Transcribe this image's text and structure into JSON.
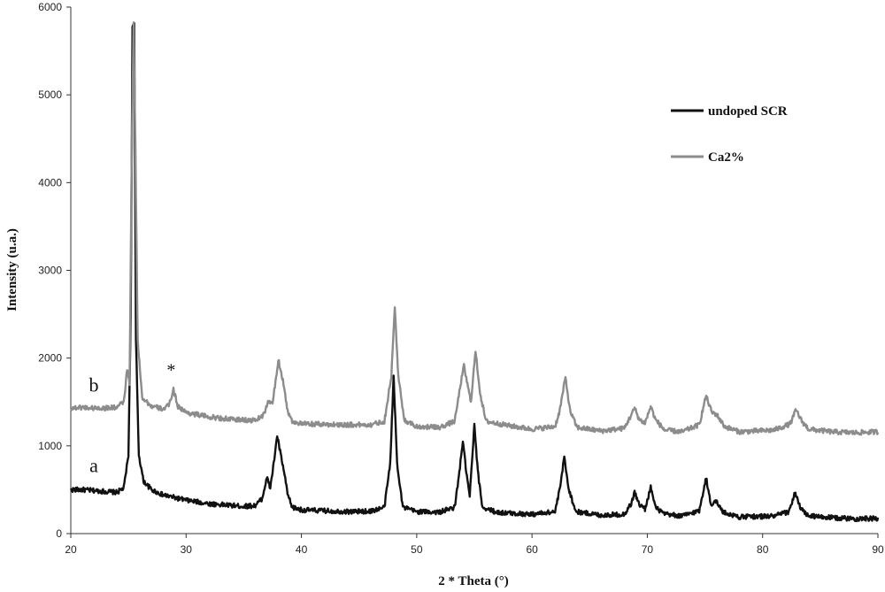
{
  "chart_data": {
    "type": "line",
    "xlabel": "2 * Theta (°)",
    "ylabel": "Intensity (u.a.)",
    "xlim": [
      20,
      90
    ],
    "ylim": [
      0,
      6000
    ],
    "x_ticks": [
      "20",
      "30",
      "40",
      "50",
      "60",
      "70",
      "80",
      "90"
    ],
    "y_ticks": [
      "0",
      "1000",
      "2000",
      "3000",
      "4000",
      "5000",
      "6000"
    ],
    "grid": false,
    "legend_position": "top-right",
    "series": [
      {
        "name": "undoped SCR",
        "color": "#111111",
        "points": [
          [
            20,
            500
          ],
          [
            21,
            500
          ],
          [
            22,
            490
          ],
          [
            23,
            480
          ],
          [
            24,
            470
          ],
          [
            24.6,
            520
          ],
          [
            25.0,
            900
          ],
          [
            25.2,
            2500
          ],
          [
            25.35,
            5800
          ],
          [
            25.5,
            5800
          ],
          [
            25.65,
            2200
          ],
          [
            25.9,
            900
          ],
          [
            26.3,
            600
          ],
          [
            27,
            500
          ],
          [
            28,
            440
          ],
          [
            29,
            410
          ],
          [
            30,
            380
          ],
          [
            31,
            360
          ],
          [
            32,
            340
          ],
          [
            33,
            330
          ],
          [
            34,
            320
          ],
          [
            35,
            310
          ],
          [
            36,
            320
          ],
          [
            36.6,
            400
          ],
          [
            37.0,
            640
          ],
          [
            37.3,
            520
          ],
          [
            37.6,
            800
          ],
          [
            37.9,
            1120
          ],
          [
            38.2,
            900
          ],
          [
            38.5,
            700
          ],
          [
            38.8,
            450
          ],
          [
            39.2,
            300
          ],
          [
            40,
            270
          ],
          [
            42,
            260
          ],
          [
            44,
            250
          ],
          [
            46,
            255
          ],
          [
            47.2,
            300
          ],
          [
            47.7,
            800
          ],
          [
            48.0,
            1780
          ],
          [
            48.3,
            800
          ],
          [
            48.8,
            300
          ],
          [
            50,
            250
          ],
          [
            52,
            245
          ],
          [
            53.3,
            300
          ],
          [
            53.7,
            700
          ],
          [
            54.0,
            1060
          ],
          [
            54.3,
            700
          ],
          [
            54.6,
            420
          ],
          [
            55.0,
            1230
          ],
          [
            55.3,
            700
          ],
          [
            55.7,
            300
          ],
          [
            57,
            240
          ],
          [
            60,
            220
          ],
          [
            62,
            250
          ],
          [
            62.4,
            500
          ],
          [
            62.8,
            870
          ],
          [
            63.2,
            500
          ],
          [
            63.8,
            250
          ],
          [
            66,
            210
          ],
          [
            68,
            220
          ],
          [
            68.6,
            340
          ],
          [
            68.9,
            470
          ],
          [
            69.3,
            330
          ],
          [
            69.8,
            280
          ],
          [
            70.3,
            530
          ],
          [
            70.7,
            300
          ],
          [
            71.5,
            220
          ],
          [
            73,
            200
          ],
          [
            74.5,
            260
          ],
          [
            75.1,
            640
          ],
          [
            75.5,
            330
          ],
          [
            75.9,
            380
          ],
          [
            76.6,
            240
          ],
          [
            78,
            190
          ],
          [
            81,
            200
          ],
          [
            82.3,
            250
          ],
          [
            82.8,
            470
          ],
          [
            83.3,
            280
          ],
          [
            84,
            200
          ],
          [
            86,
            180
          ],
          [
            88,
            170
          ],
          [
            90,
            170
          ]
        ]
      },
      {
        "name": "Ca2%",
        "color": "#8c8c8c",
        "points": [
          [
            20,
            1430
          ],
          [
            21,
            1440
          ],
          [
            22,
            1430
          ],
          [
            23,
            1430
          ],
          [
            24,
            1440
          ],
          [
            24.6,
            1500
          ],
          [
            24.9,
            1880
          ],
          [
            25.1,
            1700
          ],
          [
            25.3,
            4500
          ],
          [
            25.45,
            5800
          ],
          [
            25.6,
            4400
          ],
          [
            25.8,
            2200
          ],
          [
            26.2,
            1550
          ],
          [
            27,
            1450
          ],
          [
            28,
            1420
          ],
          [
            28.5,
            1460
          ],
          [
            28.9,
            1640
          ],
          [
            29.3,
            1450
          ],
          [
            30,
            1380
          ],
          [
            32,
            1330
          ],
          [
            34,
            1300
          ],
          [
            36,
            1290
          ],
          [
            36.8,
            1360
          ],
          [
            37.1,
            1510
          ],
          [
            37.5,
            1480
          ],
          [
            38.0,
            1980
          ],
          [
            38.4,
            1750
          ],
          [
            38.8,
            1400
          ],
          [
            39.2,
            1280
          ],
          [
            40,
            1250
          ],
          [
            44,
            1240
          ],
          [
            46,
            1240
          ],
          [
            47.2,
            1280
          ],
          [
            47.8,
            1800
          ],
          [
            48.1,
            2570
          ],
          [
            48.4,
            1800
          ],
          [
            48.9,
            1300
          ],
          [
            50,
            1220
          ],
          [
            52,
            1210
          ],
          [
            53.3,
            1280
          ],
          [
            53.8,
            1700
          ],
          [
            54.1,
            1910
          ],
          [
            54.4,
            1700
          ],
          [
            54.7,
            1500
          ],
          [
            55.1,
            2080
          ],
          [
            55.5,
            1600
          ],
          [
            56,
            1280
          ],
          [
            58,
            1230
          ],
          [
            60,
            1190
          ],
          [
            62,
            1220
          ],
          [
            62.4,
            1400
          ],
          [
            62.9,
            1780
          ],
          [
            63.3,
            1400
          ],
          [
            63.9,
            1210
          ],
          [
            66,
            1170
          ],
          [
            68,
            1200
          ],
          [
            68.6,
            1350
          ],
          [
            68.9,
            1430
          ],
          [
            69.3,
            1300
          ],
          [
            69.8,
            1260
          ],
          [
            70.3,
            1450
          ],
          [
            70.7,
            1300
          ],
          [
            71.5,
            1180
          ],
          [
            73,
            1160
          ],
          [
            74.5,
            1240
          ],
          [
            75.1,
            1570
          ],
          [
            75.6,
            1380
          ],
          [
            76.0,
            1360
          ],
          [
            76.7,
            1220
          ],
          [
            78,
            1160
          ],
          [
            81,
            1180
          ],
          [
            82.4,
            1250
          ],
          [
            82.9,
            1410
          ],
          [
            83.4,
            1280
          ],
          [
            84,
            1190
          ],
          [
            86,
            1160
          ],
          [
            88,
            1150
          ],
          [
            90,
            1160
          ]
        ]
      }
    ],
    "annotations": [
      {
        "text": "a",
        "x": 22,
        "y": 700
      },
      {
        "text": "b",
        "x": 22,
        "y": 1620
      },
      {
        "text": "*",
        "x": 28.7,
        "y": 1800
      }
    ]
  }
}
